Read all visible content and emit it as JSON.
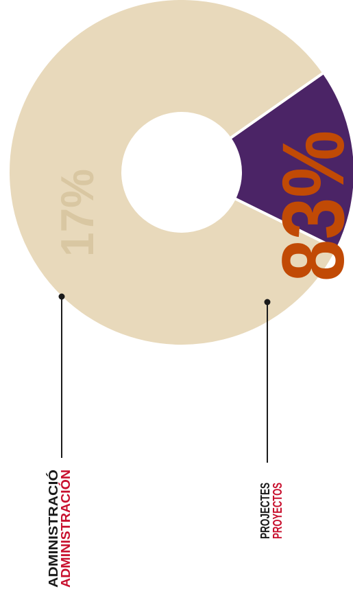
{
  "chart_data": {
    "type": "pie",
    "variant": "donut",
    "orientation": "rotated-90-ccw",
    "slices": [
      {
        "name": "Projectes",
        "value": 83,
        "percent_label": "83%",
        "label_primary": "PROJECTES",
        "label_secondary": "PROYECTOS",
        "color": "#e8d9bb",
        "percent_color": "#c14a05"
      },
      {
        "name": "Administració",
        "value": 17,
        "percent_label": "17%",
        "label_primary": "ADMINISTRACIÓ",
        "label_secondary": "ADMINISTRACIÓN",
        "color": "#4b2466",
        "percent_color": "#d9c7a2"
      }
    ],
    "label_primary_color": "#1a1a1a",
    "label_secondary_color": "#c8102e"
  }
}
